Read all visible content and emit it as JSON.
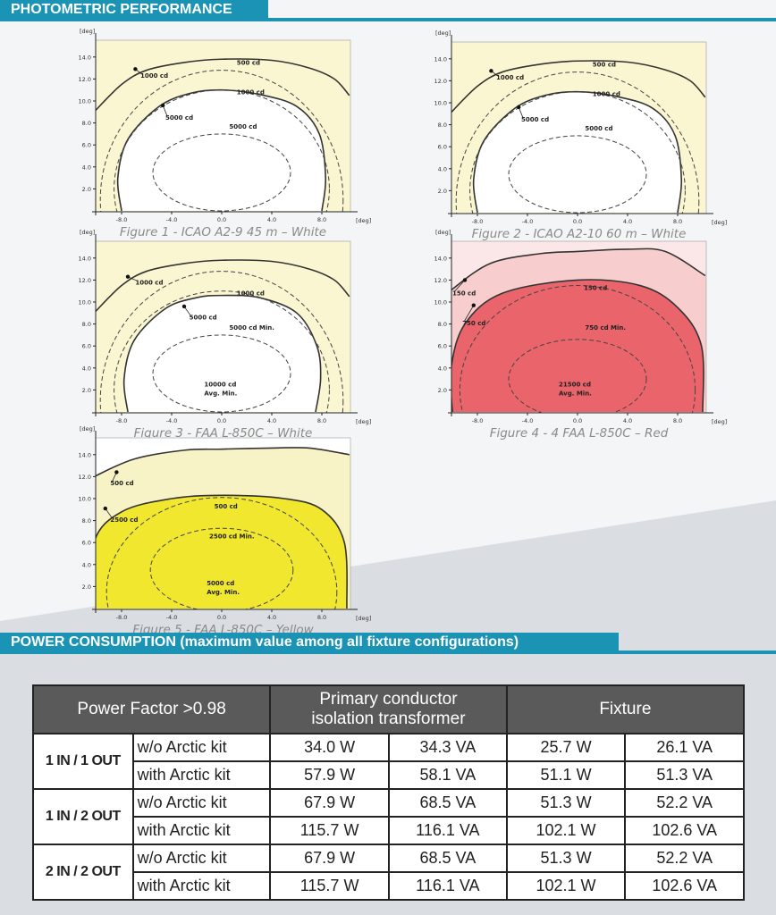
{
  "photometric": {
    "title": "PHOTOMETRIC PERFORMANCE",
    "axis": {
      "unit": "[deg]",
      "yticks": [
        "14.0",
        "12.0",
        "10.0",
        "8.0",
        "6.0",
        "4.0",
        "2.0"
      ],
      "xticks": [
        "-8.0",
        "-4.0",
        "0.0",
        "4.0",
        "8.0"
      ]
    },
    "figures": [
      {
        "caption": "Figure 1 -  ICAO A2-9 45 m – White",
        "labels": [
          "1000 cd",
          "500 cd",
          "5000 cd",
          "1000 cd",
          "5000 cd"
        ]
      },
      {
        "caption": "Figure 2 -  ICAO A2-10 60 m – White",
        "labels": [
          "1000 cd",
          "500 cd",
          "5000 cd",
          "1000 cd",
          "5000 cd"
        ]
      },
      {
        "caption": "Figure 3 - FAA L-850C – White",
        "labels": [
          "1000 cd",
          "5000 cd",
          "1000 cd",
          "5000 cd Min.",
          "10000 cd",
          "Avg. Min."
        ]
      },
      {
        "caption": "Figure 4 -  4 FAA L-850C – Red",
        "labels": [
          "150 cd",
          "750 cd",
          "150 cd",
          "750 cd Min.",
          "21500 cd",
          "Avg. Min."
        ]
      },
      {
        "caption": "Figure 5 - FAA L-850C – Yellow",
        "labels": [
          "500 cd",
          "2500 cd",
          "500 cd",
          "2500 cd Min.",
          "5000 cd",
          "Avg. Min."
        ]
      }
    ]
  },
  "power": {
    "title": "POWER CONSUMPTION (maximum value among all fixture configurations)",
    "table": {
      "header": [
        "Power Factor >0.98",
        "Primary conductor isolation transformer",
        "Fixture"
      ],
      "groups": [
        {
          "label": "1 IN / 1 OUT",
          "rows": [
            [
              "w/o Arctic kit",
              "34.0 W",
              "34.3 VA",
              "25.7 W",
              "26.1 VA"
            ],
            [
              "with Arctic kit",
              "57.9 W",
              "58.1 VA",
              "51.1 W",
              "51.3 VA"
            ]
          ]
        },
        {
          "label": "1 IN / 2 OUT",
          "rows": [
            [
              "w/o Arctic kit",
              "67.9 W",
              "68.5 VA",
              "51.3 W",
              "52.2 VA"
            ],
            [
              "with Arctic kit",
              "115.7 W",
              "116.1 VA",
              "102.1 W",
              "102.6 VA"
            ]
          ]
        },
        {
          "label": "2 IN / 2 OUT",
          "rows": [
            [
              "w/o Arctic kit",
              "67.9 W",
              "68.5 VA",
              "51.3 W",
              "52.2 VA"
            ],
            [
              "with Arctic kit",
              "115.7 W",
              "116.1 VA",
              "102.1 W",
              "102.6 VA"
            ]
          ]
        }
      ]
    }
  }
}
